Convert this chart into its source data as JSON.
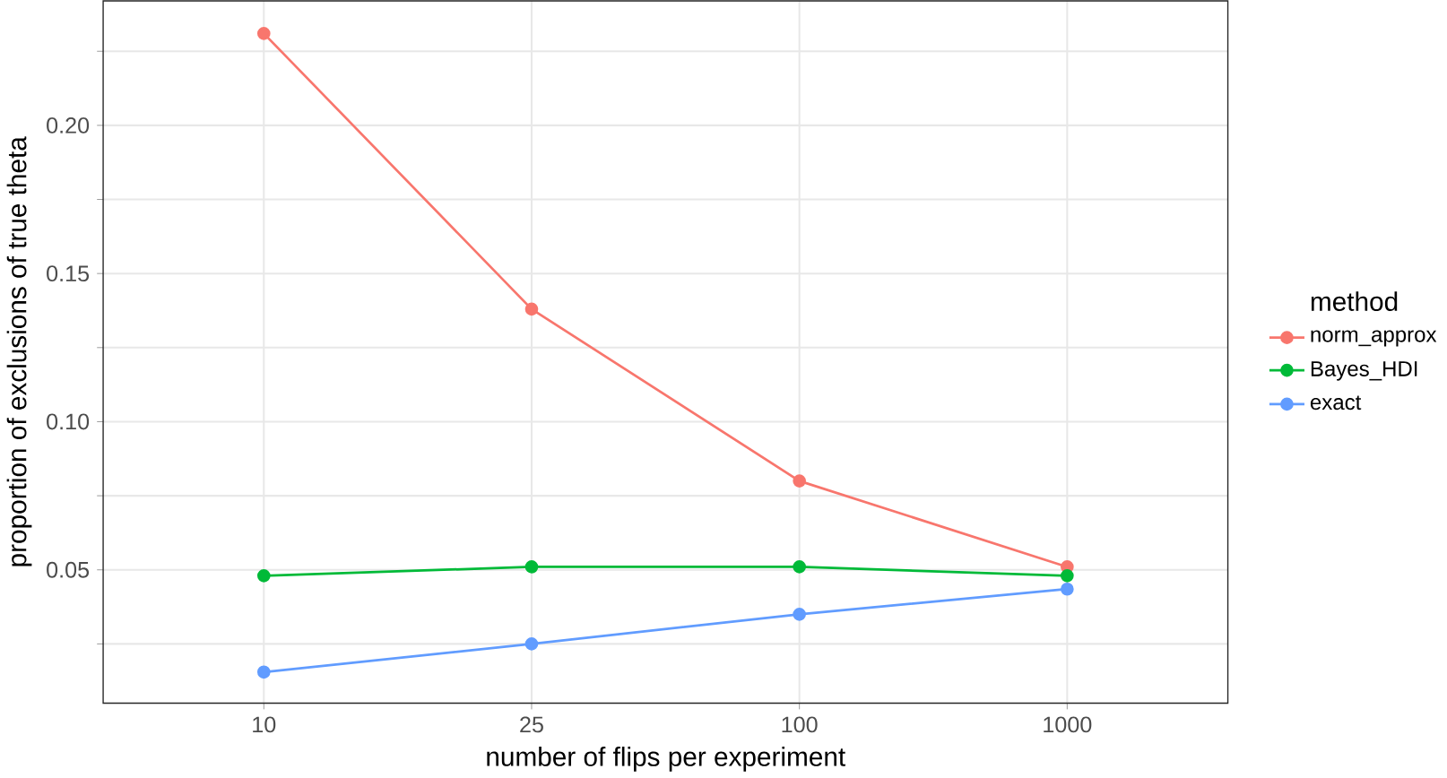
{
  "chart_data": {
    "type": "line",
    "xlabel": "number of flips per experiment",
    "ylabel": "proportion of exclusions of true theta",
    "legend_title": "method",
    "categories": [
      "10",
      "25",
      "100",
      "1000"
    ],
    "series": [
      {
        "name": "norm_approx",
        "color": "#f8766d",
        "values": [
          0.231,
          0.138,
          0.08,
          0.051
        ]
      },
      {
        "name": "Bayes_HDI",
        "color": "#00ba38",
        "values": [
          0.048,
          0.051,
          0.051,
          0.048
        ]
      },
      {
        "name": "exact",
        "color": "#619cff",
        "values": [
          0.0155,
          0.025,
          0.035,
          0.0435
        ]
      }
    ],
    "ylim": [
      0.005,
      0.242
    ],
    "yticks": [
      {
        "value": 0.025,
        "label": null
      },
      0.05,
      {
        "value": 0.075,
        "label": null
      },
      {
        "value": 0.1,
        "label": "0.10"
      },
      {
        "value": 0.125,
        "label": null
      },
      0.15,
      {
        "value": 0.175,
        "label": null
      },
      {
        "value": 0.2,
        "label": "0.20"
      },
      {
        "value": 0.225,
        "label": null
      }
    ],
    "grid": true,
    "legend": "right",
    "marker": "circle",
    "line_style": "solid"
  }
}
